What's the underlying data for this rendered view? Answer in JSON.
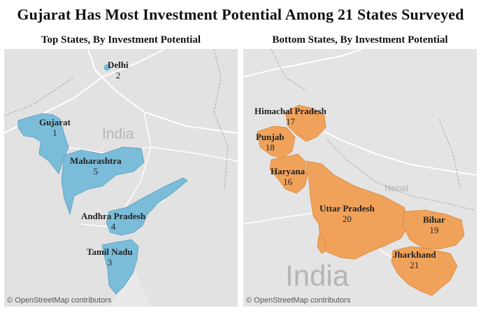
{
  "title": "Gujarat Has Most Investment Potential Among 21 States Surveyed",
  "panels": {
    "left": {
      "title": "Top States, By Investment Potential",
      "country_label": "India",
      "fill_color": "#7bbcd9",
      "attribution": "© OpenStreetMap contributors",
      "states": [
        {
          "name": "Delhi",
          "rank": "2"
        },
        {
          "name": "Gujarat",
          "rank": "1"
        },
        {
          "name": "Maharashtra",
          "rank": "5"
        },
        {
          "name": "Andhra Pradesh",
          "rank": "4"
        },
        {
          "name": "Tamil Nadu",
          "rank": "3"
        }
      ]
    },
    "right": {
      "title": "Bottom States, By Investment Potential",
      "country_label": "India",
      "neighbor_label": "Nepal",
      "fill_color": "#f0a25a",
      "attribution": "© OpenStreetMap contributors",
      "states": [
        {
          "name": "Himachal Pradesh",
          "rank": "17"
        },
        {
          "name": "Punjab",
          "rank": "18"
        },
        {
          "name": "Haryana",
          "rank": "16"
        },
        {
          "name": "Uttar Pradesh",
          "rank": "20"
        },
        {
          "name": "Bihar",
          "rank": "19"
        },
        {
          "name": "Jharkhand",
          "rank": "21"
        }
      ]
    }
  }
}
